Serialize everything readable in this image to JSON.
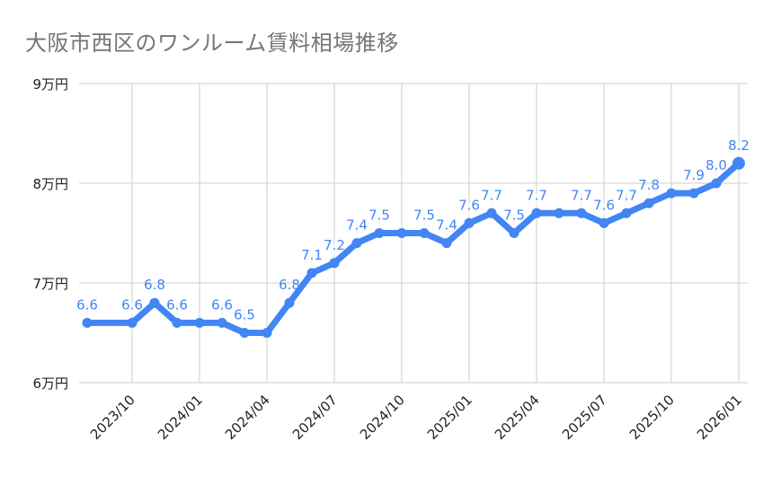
{
  "chart_data": {
    "type": "line",
    "title": "大阪市西区のワンルーム賃料相場推移",
    "xlabel": "",
    "ylabel": "",
    "ylim": [
      6,
      9
    ],
    "y_unit": "万円",
    "y_ticks": [
      "6万円",
      "7万円",
      "8万円",
      "9万円"
    ],
    "y_tick_values": [
      6,
      7,
      8,
      9
    ],
    "x_tick_labels": [
      "2023/10",
      "2024/01",
      "2024/04",
      "2024/07",
      "2024/10",
      "2025/01",
      "2025/04",
      "2025/07",
      "2025/10",
      "2026/01"
    ],
    "grid": true,
    "legend": "none",
    "series": [
      {
        "name": "ワンルーム賃料相場",
        "color": "#4285F4",
        "points": [
          {
            "x": "2023/08",
            "y": 6.6,
            "label": "6.6"
          },
          {
            "x": "2023/10",
            "y": 6.6,
            "label": "6.6"
          },
          {
            "x": "2023/11",
            "y": 6.8,
            "label": "6.8"
          },
          {
            "x": "2023/12",
            "y": 6.6,
            "label": "6.6"
          },
          {
            "x": "2024/01",
            "y": 6.6,
            "label": ""
          },
          {
            "x": "2024/02",
            "y": 6.6,
            "label": "6.6"
          },
          {
            "x": "2024/03",
            "y": 6.5,
            "label": "6.5"
          },
          {
            "x": "2024/04",
            "y": 6.5,
            "label": ""
          },
          {
            "x": "2024/05",
            "y": 6.8,
            "label": "6.8"
          },
          {
            "x": "2024/06",
            "y": 7.1,
            "label": "7.1"
          },
          {
            "x": "2024/07",
            "y": 7.2,
            "label": "7.2"
          },
          {
            "x": "2024/08",
            "y": 7.4,
            "label": "7.4"
          },
          {
            "x": "2024/09",
            "y": 7.5,
            "label": "7.5"
          },
          {
            "x": "2024/10",
            "y": 7.5,
            "label": ""
          },
          {
            "x": "2024/11",
            "y": 7.5,
            "label": "7.5"
          },
          {
            "x": "2024/12",
            "y": 7.4,
            "label": "7.4"
          },
          {
            "x": "2025/01",
            "y": 7.6,
            "label": "7.6"
          },
          {
            "x": "2025/02",
            "y": 7.7,
            "label": "7.7"
          },
          {
            "x": "2025/03",
            "y": 7.5,
            "label": "7.5"
          },
          {
            "x": "2025/04",
            "y": 7.7,
            "label": "7.7"
          },
          {
            "x": "2025/05",
            "y": 7.7,
            "label": ""
          },
          {
            "x": "2025/06",
            "y": 7.7,
            "label": "7.7"
          },
          {
            "x": "2025/07",
            "y": 7.6,
            "label": "7.6"
          },
          {
            "x": "2025/08",
            "y": 7.7,
            "label": "7.7"
          },
          {
            "x": "2025/09",
            "y": 7.8,
            "label": "7.8"
          },
          {
            "x": "2025/10",
            "y": 7.9,
            "label": ""
          },
          {
            "x": "2025/11",
            "y": 7.9,
            "label": "7.9"
          },
          {
            "x": "2025/12",
            "y": 8.0,
            "label": "8.0"
          },
          {
            "x": "2026/01",
            "y": 8.2,
            "label": "8.2"
          }
        ]
      }
    ]
  },
  "colors": {
    "line": "#4285F4",
    "label": "#4285F4",
    "grid": "#cccccc",
    "title": "#757575",
    "axis_text": "#222222"
  }
}
